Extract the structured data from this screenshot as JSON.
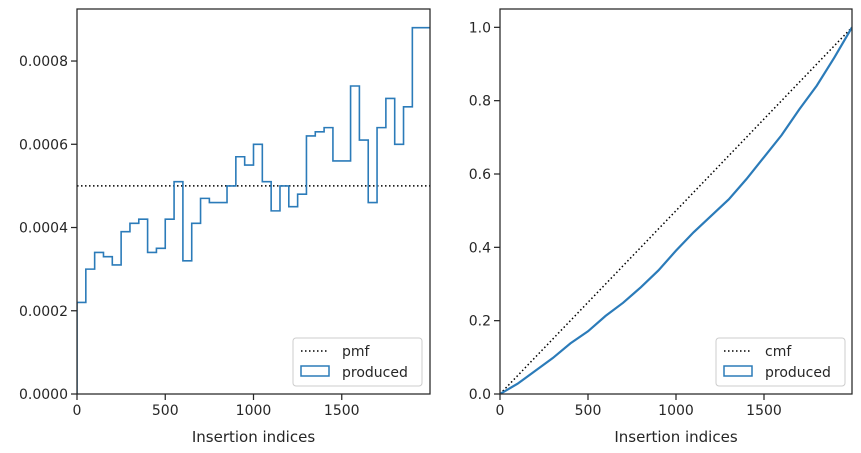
{
  "colors": {
    "series": "#2b7bb9",
    "reference": "#000000",
    "axes": "#262626",
    "legend_border": "#cccccc"
  },
  "chart_data": [
    {
      "type": "line",
      "title": "",
      "xlabel": "Insertion indices",
      "ylabel": "",
      "xlim": [
        0,
        2000
      ],
      "ylim": [
        0,
        0.000925
      ],
      "x_ticks": [
        0,
        500,
        1000,
        1500
      ],
      "x_tick_labels": [
        "0",
        "500",
        "1000",
        "1500"
      ],
      "y_ticks": [
        0,
        0.0002,
        0.0004,
        0.0006,
        0.0008
      ],
      "y_tick_labels": [
        "0.0000",
        "0.0002",
        "0.0004",
        "0.0006",
        "0.0008"
      ],
      "grid": false,
      "legend_position": "lower-right",
      "legend": [
        "pmf",
        "produced"
      ],
      "reference_line": {
        "name": "pmf",
        "style": "dotted",
        "y": 0.0005
      },
      "histogram": {
        "name": "produced",
        "style": "step",
        "bin_width": 50,
        "bin_starts": [
          0,
          50,
          100,
          150,
          200,
          250,
          300,
          350,
          400,
          450,
          500,
          550,
          600,
          650,
          700,
          750,
          800,
          850,
          900,
          950,
          1000,
          1050,
          1100,
          1150,
          1200,
          1250,
          1300,
          1350,
          1400,
          1450,
          1500,
          1550,
          1600,
          1650,
          1700,
          1750,
          1800,
          1850,
          1900,
          1950
        ],
        "values": [
          0.00022,
          0.0003,
          0.00034,
          0.00033,
          0.00031,
          0.00039,
          0.00041,
          0.00042,
          0.00034,
          0.00035,
          0.00042,
          0.00051,
          0.00032,
          0.00041,
          0.00047,
          0.00046,
          0.00046,
          0.0005,
          0.00057,
          0.00055,
          0.0006,
          0.00051,
          0.00044,
          0.0005,
          0.00045,
          0.00048,
          0.00062,
          0.00063,
          0.00064,
          0.00056,
          0.00056,
          0.00074,
          0.00061,
          0.00046,
          0.00064,
          0.00071,
          0.0006,
          0.00069,
          0.00088,
          0.00088
        ]
      }
    },
    {
      "type": "line",
      "title": "",
      "xlabel": "Insertion indices",
      "ylabel": "",
      "xlim": [
        0,
        2000
      ],
      "ylim": [
        0,
        1.05
      ],
      "x_ticks": [
        0,
        500,
        1000,
        1500
      ],
      "x_tick_labels": [
        "0",
        "500",
        "1000",
        "1500"
      ],
      "y_ticks": [
        0,
        0.2,
        0.4,
        0.6,
        0.8,
        1.0
      ],
      "y_tick_labels": [
        "0.0",
        "0.2",
        "0.4",
        "0.6",
        "0.8",
        "1.0"
      ],
      "grid": false,
      "legend_position": "lower-right",
      "legend": [
        "cmf",
        "produced"
      ],
      "reference_line": {
        "name": "cmf",
        "style": "dotted",
        "points": [
          [
            0,
            0
          ],
          [
            2000,
            1.0
          ]
        ]
      },
      "series": [
        {
          "name": "produced",
          "x": [
            0,
            100,
            200,
            300,
            400,
            500,
            600,
            700,
            800,
            900,
            1000,
            1100,
            1200,
            1300,
            1400,
            1500,
            1600,
            1700,
            1800,
            1900,
            2000
          ],
          "values": [
            0,
            0.028,
            0.063,
            0.098,
            0.138,
            0.171,
            0.213,
            0.249,
            0.291,
            0.337,
            0.391,
            0.441,
            0.486,
            0.531,
            0.586,
            0.646,
            0.706,
            0.776,
            0.841,
            0.918,
            1.0
          ]
        }
      ]
    }
  ]
}
